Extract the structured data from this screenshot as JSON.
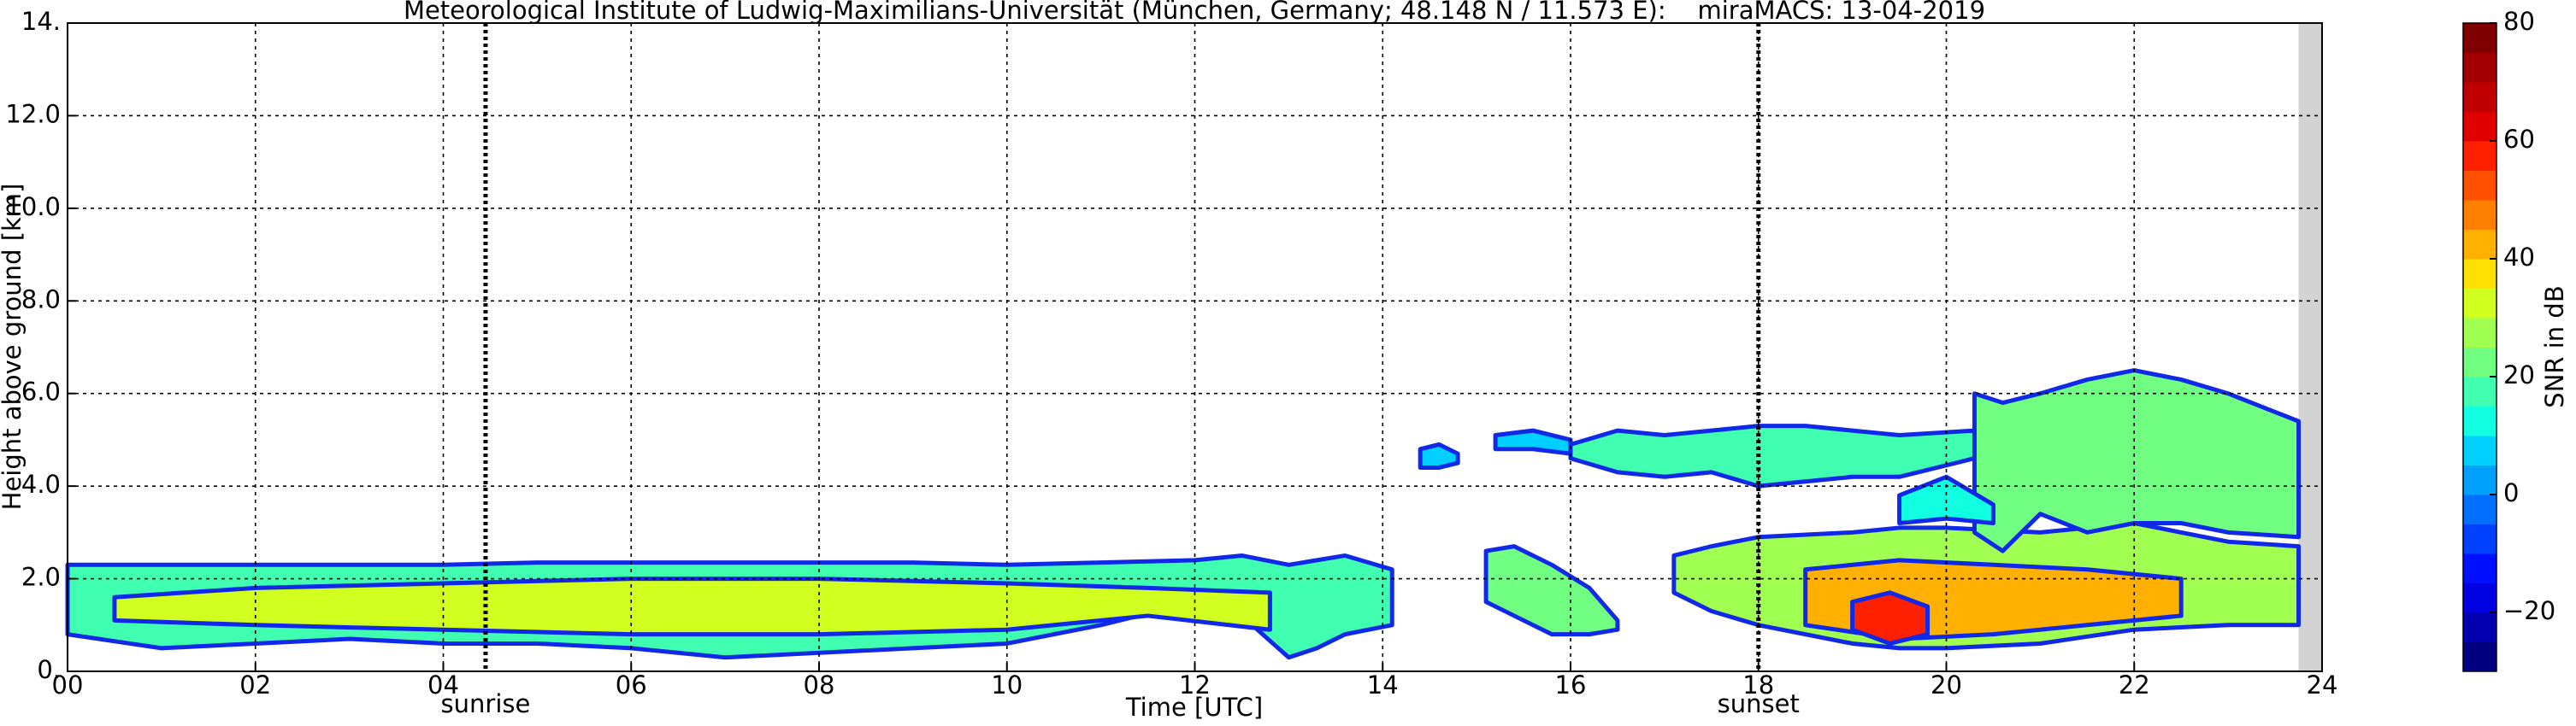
{
  "chart_data": {
    "type": "radar-profile",
    "title": "Meteorological Institute of Ludwig-Maximilians-Universität (München, Germany; 48.148 N / 11.573 E):    miraMACS: 13-04-2019",
    "x_label": "Time [UTC]",
    "y_label": "Height above ground [km]",
    "xlim": [
      0,
      24
    ],
    "xticks": [
      {
        "value": 0,
        "label": "00"
      },
      {
        "value": 2,
        "label": "02"
      },
      {
        "value": 4,
        "label": "04"
      },
      {
        "value": 6,
        "label": "06"
      },
      {
        "value": 8,
        "label": "08"
      },
      {
        "value": 10,
        "label": "10"
      },
      {
        "value": 12,
        "label": "12"
      },
      {
        "value": 14,
        "label": "14"
      },
      {
        "value": 16,
        "label": "16"
      },
      {
        "value": 18,
        "label": "18"
      },
      {
        "value": 20,
        "label": "20"
      },
      {
        "value": 22,
        "label": "22"
      },
      {
        "value": 24,
        "label": "24"
      }
    ],
    "ylim": [
      0,
      14
    ],
    "yticks": [
      {
        "value": 0,
        "label": "0."
      },
      {
        "value": 2,
        "label": "2.0"
      },
      {
        "value": 4,
        "label": "4.0"
      },
      {
        "value": 6,
        "label": "6.0"
      },
      {
        "value": 8,
        "label": "8.0"
      },
      {
        "value": 10,
        "label": "10.0"
      },
      {
        "value": 12,
        "label": "12.0"
      },
      {
        "value": 14,
        "label": "14."
      }
    ],
    "grid": true,
    "no_data_from": 23.75,
    "events": [
      {
        "text": "sunrise",
        "x": 4.45
      },
      {
        "text": "sunset",
        "x": 18.0
      }
    ],
    "colorbar": {
      "label": "SNR in dB",
      "lim": [
        -30,
        80
      ],
      "step": 5,
      "ticks": [
        {
          "value": -20,
          "label": "−20"
        },
        0,
        20,
        40,
        60,
        80
      ],
      "colors": [
        "#000080",
        "#0000b0",
        "#0000e0",
        "#0010ff",
        "#0040ff",
        "#0070ff",
        "#00a0ff",
        "#00d0ff",
        "#10ffe0",
        "#40ffb0",
        "#70ff80",
        "#a0ff50",
        "#d0ff20",
        "#ffe000",
        "#ffb000",
        "#ff8000",
        "#ff5000",
        "#ff2000",
        "#e00000",
        "#c00000",
        "#a00000",
        "#800000"
      ]
    },
    "edge_color": "#1028e8",
    "layers": [
      {
        "snr": 15,
        "x": [
          0,
          1,
          2,
          3,
          4,
          5,
          6,
          7,
          8,
          9,
          10,
          11,
          12,
          12.5,
          13,
          13.3,
          13.6,
          14.1
        ],
        "top": [
          2.3,
          2.3,
          2.3,
          2.3,
          2.3,
          2.35,
          2.35,
          2.35,
          2.35,
          2.35,
          2.3,
          2.35,
          2.4,
          2.5,
          2.3,
          2.4,
          2.5,
          2.2
        ],
        "bottom": [
          0.8,
          0.5,
          0.6,
          0.7,
          0.6,
          0.6,
          0.5,
          0.3,
          0.4,
          0.5,
          0.6,
          1.0,
          1.5,
          1.2,
          0.3,
          0.5,
          0.8,
          1.0
        ]
      },
      {
        "snr": 30,
        "x": [
          0.5,
          2,
          4,
          6,
          8,
          10,
          11.5,
          12.8
        ],
        "top": [
          1.6,
          1.8,
          1.9,
          2.0,
          2.0,
          1.9,
          1.8,
          1.7
        ],
        "bottom": [
          1.1,
          1.0,
          0.9,
          0.8,
          0.8,
          0.9,
          1.2,
          0.9
        ]
      },
      {
        "snr": 20,
        "x": [
          15.1,
          15.4,
          15.8,
          16.2,
          16.5
        ],
        "top": [
          2.6,
          2.7,
          2.3,
          1.8,
          1.1
        ],
        "bottom": [
          1.5,
          1.2,
          0.8,
          0.8,
          0.9
        ]
      },
      {
        "snr": 25,
        "x": [
          17.1,
          17.5,
          18,
          19,
          19.5,
          20,
          21,
          22,
          23,
          23.75
        ],
        "top": [
          2.5,
          2.7,
          2.9,
          3.0,
          3.1,
          3.1,
          3.0,
          3.2,
          2.8,
          2.7
        ],
        "bottom": [
          1.7,
          1.3,
          1.0,
          0.6,
          0.5,
          0.5,
          0.6,
          0.9,
          1.0,
          1.0
        ]
      },
      {
        "snr": 40,
        "x": [
          18.5,
          19.5,
          20.5,
          21.5,
          22.5
        ],
        "top": [
          2.2,
          2.4,
          2.3,
          2.2,
          2.0
        ],
        "bottom": [
          1.0,
          0.7,
          0.8,
          1.0,
          1.2
        ]
      },
      {
        "snr": 55,
        "x": [
          19.0,
          19.4,
          19.8
        ],
        "top": [
          1.5,
          1.7,
          1.4
        ],
        "bottom": [
          0.9,
          0.6,
          0.8
        ]
      },
      {
        "snr": 15,
        "x": [
          16,
          16.5,
          17,
          17.5,
          18,
          18.5,
          19,
          19.5,
          20.3
        ],
        "top": [
          4.9,
          5.2,
          5.1,
          5.2,
          5.3,
          5.3,
          5.2,
          5.1,
          5.2
        ],
        "bottom": [
          4.6,
          4.3,
          4.2,
          4.3,
          4.0,
          4.1,
          4.2,
          4.2,
          4.6
        ]
      },
      {
        "snr": 20,
        "x": [
          20.3,
          20.6,
          21,
          21.5,
          22,
          22.5,
          23,
          23.75
        ],
        "top": [
          6.0,
          5.8,
          6.0,
          6.3,
          6.5,
          6.3,
          6.0,
          5.4
        ],
        "bottom": [
          3.0,
          2.6,
          3.4,
          3.0,
          3.2,
          3.2,
          3.0,
          2.9
        ]
      },
      {
        "snr": 5,
        "x": [
          15.2,
          15.6,
          16
        ],
        "top": [
          5.1,
          5.2,
          5.0
        ],
        "bottom": [
          4.8,
          4.8,
          4.7
        ]
      },
      {
        "snr": 5,
        "x": [
          14.4,
          14.6,
          14.8
        ],
        "top": [
          4.8,
          4.9,
          4.7
        ],
        "bottom": [
          4.4,
          4.4,
          4.5
        ]
      },
      {
        "snr": 10,
        "x": [
          19.5,
          20,
          20.5
        ],
        "top": [
          3.8,
          4.2,
          3.6
        ],
        "bottom": [
          3.2,
          3.3,
          3.2
        ]
      }
    ]
  }
}
